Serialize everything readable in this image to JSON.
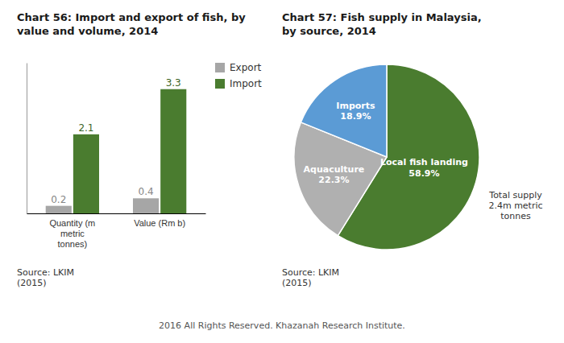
{
  "chart_data": [
    {
      "type": "bar",
      "title": "Chart 56: Import and export of fish, by\nvalue and volume, 2014",
      "categories": [
        "Quantity (m\nmetric\ntonnes)",
        "Value (Rm b)"
      ],
      "series": [
        {
          "name": "Export",
          "color": "#a6a6a6",
          "values": [
            0.2,
            0.4
          ]
        },
        {
          "name": "Import",
          "color": "#4a7c2f",
          "values": [
            2.1,
            3.3
          ]
        }
      ],
      "ylim": [
        0,
        4.0
      ],
      "data_labels": true,
      "tick_labels": "x",
      "legend": "upper right",
      "source": "Source: LKIM\n(2015)"
    },
    {
      "type": "pie",
      "title": "Chart 57: Fish supply in Malaysia,\nby source, 2014",
      "categories": [
        "Local fish landing",
        "Aquaculture",
        "Imports"
      ],
      "values": [
        58.9,
        22.3,
        18.9
      ],
      "value_labels": [
        "58.9%",
        "22.3%",
        "18.9%"
      ],
      "colors": [
        "#4a7c2f",
        "#b0b0b0",
        "#5b9bd5"
      ],
      "data_labels": true,
      "annotations": [
        "Total supply\n2.4m metric\ntonnes"
      ],
      "source": "Source: LKIM\n(2015)"
    }
  ],
  "footer": "2016 All Rights Reserved. Khazanah Research Institute."
}
